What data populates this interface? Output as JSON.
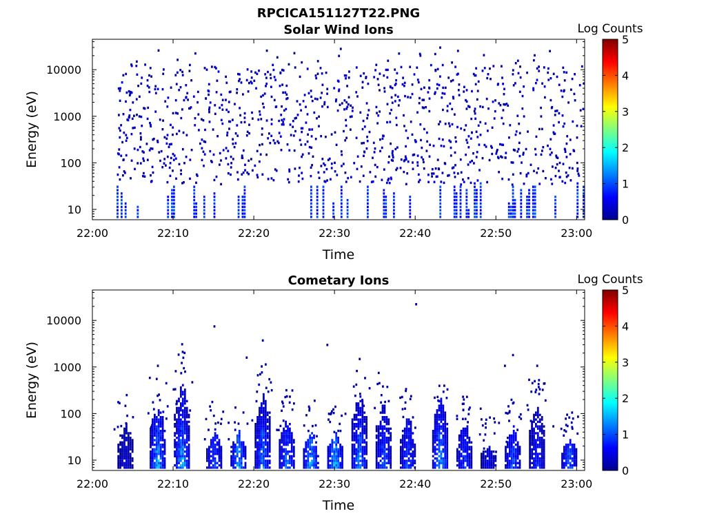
{
  "figure": {
    "title": "RPCICA151127T22.PNG"
  },
  "colorbar": {
    "label": "Log Counts",
    "ticks": [
      "0",
      "1",
      "2",
      "3",
      "4",
      "5"
    ],
    "range": [
      0,
      5
    ]
  },
  "chart_data": [
    {
      "type": "heatmap",
      "title": "Solar Wind Ions",
      "xlabel": "Time",
      "ylabel": "Energy (eV)",
      "x_ticks": [
        "22:00",
        "22:10",
        "22:20",
        "22:30",
        "22:40",
        "22:50",
        "23:00"
      ],
      "y_ticks": [
        "10",
        "100",
        "1000",
        "10000"
      ],
      "y_scale": "log",
      "ylim": [
        6,
        45000
      ],
      "xlim": [
        "22:00",
        "23:01"
      ],
      "value_range": [
        0,
        1.5
      ],
      "data_start": "22:03",
      "data_end": "23:01",
      "description_of_intensity": "sparse counts across 10–30000 eV, denser bursts at 10–30 eV, log counts mostly near 0"
    },
    {
      "type": "heatmap",
      "title": "Cometary Ions",
      "xlabel": "Time",
      "ylabel": "Energy (eV)",
      "x_ticks": [
        "22:00",
        "22:10",
        "22:20",
        "22:30",
        "22:40",
        "22:50",
        "23:00"
      ],
      "y_ticks": [
        "10",
        "100",
        "1000",
        "10000"
      ],
      "y_scale": "log",
      "ylim": [
        6,
        45000
      ],
      "xlim": [
        "22:00",
        "23:01"
      ],
      "value_range": [
        0,
        2
      ],
      "bursts": [
        {
          "t": "22:04",
          "e_top": 60,
          "peak": 0.5
        },
        {
          "t": "22:08",
          "e_top": 150,
          "peak": 1.8
        },
        {
          "t": "22:11",
          "e_top": 400,
          "peak": 1.8
        },
        {
          "t": "22:15",
          "e_top": 40,
          "peak": 1.2
        },
        {
          "t": "22:18",
          "e_top": 40,
          "peak": 1.7
        },
        {
          "t": "22:21",
          "e_top": 300,
          "peak": 1.6
        },
        {
          "t": "22:24",
          "e_top": 80,
          "peak": 1.4
        },
        {
          "t": "22:27",
          "e_top": 40,
          "peak": 1.7
        },
        {
          "t": "22:30",
          "e_top": 40,
          "peak": 1.8
        },
        {
          "t": "22:33",
          "e_top": 250,
          "peak": 1.6
        },
        {
          "t": "22:36",
          "e_top": 150,
          "peak": 1.3
        },
        {
          "t": "22:39",
          "e_top": 80,
          "peak": 1.2
        },
        {
          "t": "22:43",
          "e_top": 200,
          "peak": 1.8
        },
        {
          "t": "22:46",
          "e_top": 60,
          "peak": 1.1
        },
        {
          "t": "22:49",
          "e_top": 20,
          "peak": 0.6
        },
        {
          "t": "22:52",
          "e_top": 50,
          "peak": 1.2
        },
        {
          "t": "22:55",
          "e_top": 150,
          "peak": 1.0
        },
        {
          "t": "22:59",
          "e_top": 30,
          "peak": 1.3
        }
      ]
    }
  ]
}
